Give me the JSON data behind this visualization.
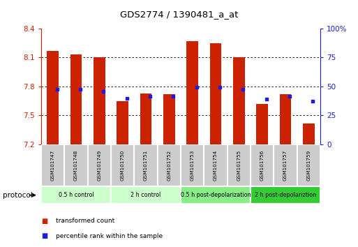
{
  "title": "GDS2774 / 1390481_a_at",
  "categories": [
    "GSM101747",
    "GSM101748",
    "GSM101749",
    "GSM101750",
    "GSM101751",
    "GSM101752",
    "GSM101753",
    "GSM101754",
    "GSM101755",
    "GSM101756",
    "GSM101757",
    "GSM101759"
  ],
  "bar_values": [
    8.17,
    8.13,
    8.1,
    7.65,
    7.73,
    7.72,
    8.27,
    8.25,
    8.1,
    7.62,
    7.72,
    7.42
  ],
  "percentile_values": [
    7.77,
    7.77,
    7.75,
    7.68,
    7.7,
    7.7,
    7.79,
    7.79,
    7.77,
    7.67,
    7.7,
    7.65
  ],
  "y_min": 7.2,
  "y_max": 8.4,
  "y_ticks": [
    7.2,
    7.5,
    7.8,
    8.1,
    8.4
  ],
  "right_y_ticks": [
    0,
    25,
    50,
    75,
    100
  ],
  "bar_color": "#cc2200",
  "percentile_color": "#1a1aee",
  "tick_label_color_left": "#cc2200",
  "tick_label_color_right": "#1a1aee",
  "protocol_groups": [
    {
      "label": "0.5 h control",
      "start": 0,
      "end": 3,
      "color": "#ccffcc"
    },
    {
      "label": "2 h control",
      "start": 3,
      "end": 6,
      "color": "#ccffcc"
    },
    {
      "label": "0.5 h post-depolarization",
      "start": 6,
      "end": 9,
      "color": "#88ee88"
    },
    {
      "label": "2 h post-depolariztion",
      "start": 9,
      "end": 12,
      "color": "#33cc33"
    }
  ],
  "legend_items": [
    {
      "label": "transformed count",
      "color": "#cc2200"
    },
    {
      "label": "percentile rank within the sample",
      "color": "#1a1aee"
    }
  ],
  "bar_width": 0.5,
  "box_color": "#cccccc",
  "box_border": "#ffffff"
}
